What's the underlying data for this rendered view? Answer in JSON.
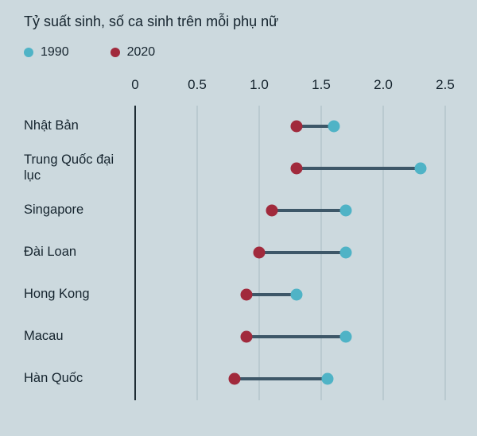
{
  "title": "Tỷ suất sinh, số ca sinh trên mỗi phụ nữ",
  "legend": [
    {
      "label": "1990",
      "color": "#4fb3c6"
    },
    {
      "label": "2020",
      "color": "#a12a3c"
    }
  ],
  "colors": {
    "background": "#ccd9de",
    "gridline": "#a7bbc3",
    "axis": "#1e2c34",
    "connector": "#3d5768",
    "text": "#15242e"
  },
  "chart_data": {
    "type": "scatter",
    "variant": "dumbbell",
    "title": "Tỷ suất sinh, số ca sinh trên mỗi phụ nữ",
    "xlabel": "",
    "ylabel": "",
    "xlim": [
      0,
      2.5
    ],
    "x_ticks": [
      "0",
      "0.5",
      "1.0",
      "1.5",
      "2.0",
      "2.5"
    ],
    "grid": "vertical",
    "legend_position": "top-left",
    "categories": [
      "Nhật Bản",
      "Trung Quốc đại lục",
      "Singapore",
      "Đài Loan",
      "Hong Kong",
      "Macau",
      "Hàn Quốc"
    ],
    "series": [
      {
        "name": "1990",
        "color": "#4fb3c6",
        "values": [
          1.6,
          2.3,
          1.7,
          1.7,
          1.3,
          1.7,
          1.55
        ]
      },
      {
        "name": "2020",
        "color": "#a12a3c",
        "values": [
          1.3,
          1.3,
          1.1,
          1.0,
          0.9,
          0.9,
          0.8
        ]
      }
    ]
  }
}
